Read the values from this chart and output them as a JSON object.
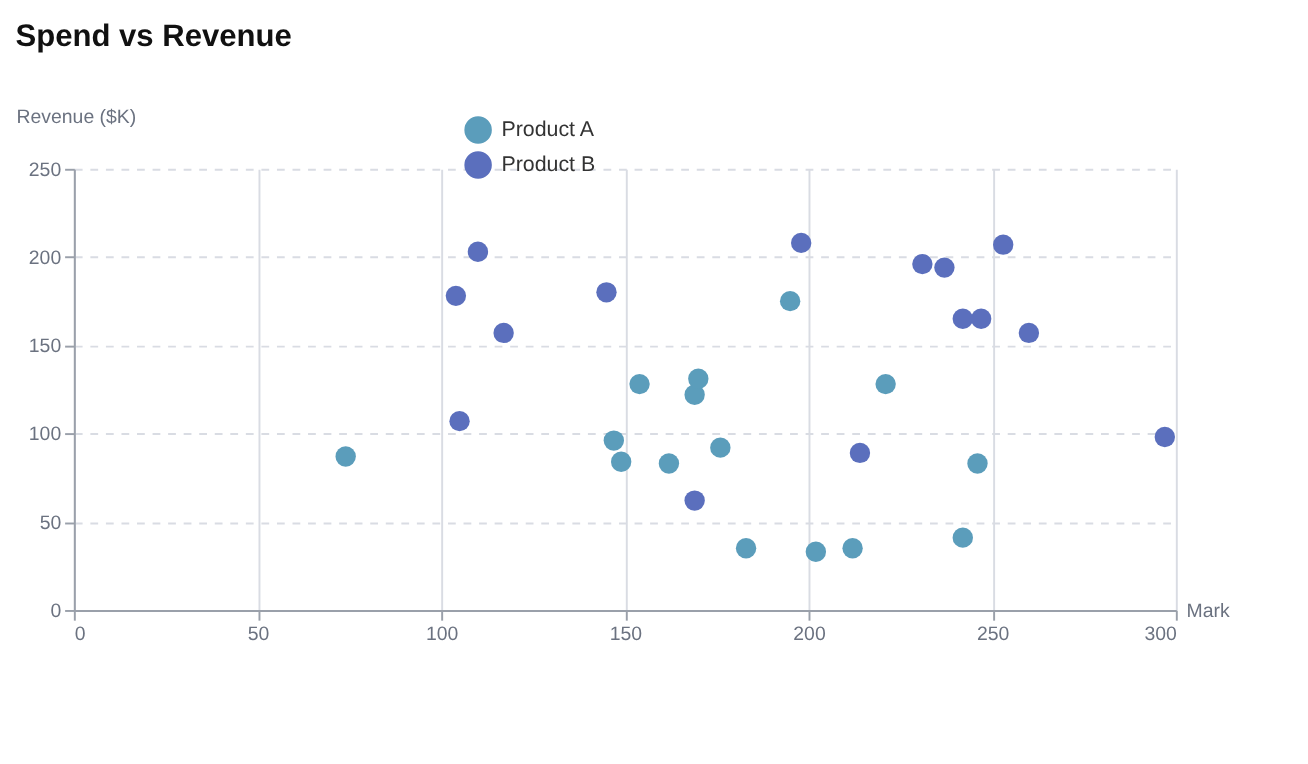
{
  "chart_data": {
    "type": "scatter",
    "title": "Spend vs Revenue",
    "xlabel": "Mark",
    "ylabel": "Revenue ($K)",
    "series": [
      {
        "name": "Product A",
        "color": "#5b9dbb",
        "x": [
          74,
          147,
          149,
          154,
          162,
          169,
          170,
          176,
          183,
          195,
          202,
          212,
          221,
          242,
          246
        ],
        "values": [
          87,
          96,
          84,
          128,
          83,
          122,
          131,
          92,
          35,
          175,
          33,
          35,
          128,
          41,
          83
        ]
      },
      {
        "name": "Product B",
        "color": "#5b6fbd",
        "x": [
          104,
          110,
          117,
          105,
          145,
          198,
          231,
          237,
          242,
          247,
          253,
          260,
          297,
          214,
          169
        ],
        "values": [
          178,
          203,
          157,
          107,
          180,
          208,
          196,
          194,
          165,
          165,
          207,
          157,
          98,
          89,
          62
        ]
      }
    ],
    "xlim": [
      0,
      300
    ],
    "ylim": [
      0,
      250
    ],
    "xticks": [
      0,
      50,
      100,
      150,
      200,
      250,
      300
    ],
    "yticks": [
      0,
      50,
      100,
      150,
      200,
      250
    ],
    "grid": true,
    "legend": "top",
    "marker": "circle"
  }
}
